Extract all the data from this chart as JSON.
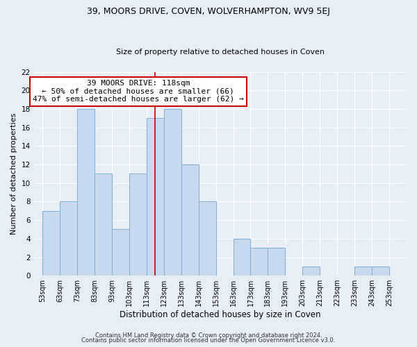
{
  "title_line1": "39, MOORS DRIVE, COVEN, WOLVERHAMPTON, WV9 5EJ",
  "title_line2": "Size of property relative to detached houses in Coven",
  "xlabel": "Distribution of detached houses by size in Coven",
  "ylabel": "Number of detached properties",
  "footer_line1": "Contains HM Land Registry data © Crown copyright and database right 2024.",
  "footer_line2": "Contains public sector information licensed under the Open Government Licence v3.0.",
  "annotation_line1": "39 MOORS DRIVE: 118sqm",
  "annotation_line2": "← 50% of detached houses are smaller (66)",
  "annotation_line3": "47% of semi-detached houses are larger (62) →",
  "bar_left_edges": [
    53,
    63,
    73,
    83,
    93,
    103,
    113,
    123,
    133,
    143,
    153,
    163,
    173,
    183,
    193,
    203,
    213,
    223,
    233,
    243
  ],
  "bar_heights": [
    7,
    8,
    18,
    11,
    5,
    11,
    17,
    18,
    12,
    8,
    0,
    4,
    3,
    3,
    0,
    1,
    0,
    0,
    1,
    1
  ],
  "bin_width": 10,
  "property_line_x": 118,
  "bar_facecolor": "#c6d9ee",
  "bar_edgecolor": "#7bafd4",
  "property_line_color": "#cc0000",
  "annotation_box_edgecolor": "#cc0000",
  "annotation_box_facecolor": "#ffffff",
  "ylim": [
    0,
    22
  ],
  "yticks": [
    0,
    2,
    4,
    6,
    8,
    10,
    12,
    14,
    16,
    18,
    20,
    22
  ],
  "xtick_labels": [
    "53sqm",
    "63sqm",
    "73sqm",
    "83sqm",
    "93sqm",
    "103sqm",
    "113sqm",
    "123sqm",
    "133sqm",
    "143sqm",
    "153sqm",
    "163sqm",
    "173sqm",
    "183sqm",
    "193sqm",
    "203sqm",
    "213sqm",
    "223sqm",
    "233sqm",
    "243sqm",
    "253sqm"
  ],
  "xtick_positions": [
    53,
    63,
    73,
    83,
    93,
    103,
    113,
    123,
    133,
    143,
    153,
    163,
    173,
    183,
    193,
    203,
    213,
    223,
    233,
    243,
    253
  ],
  "xlim": [
    48,
    263
  ],
  "background_color": "#e8eef5",
  "grid_color": "#ffffff",
  "title1_fontsize": 9,
  "title2_fontsize": 8,
  "xlabel_fontsize": 8.5,
  "ylabel_fontsize": 8,
  "tick_fontsize": 7,
  "footer_fontsize": 6,
  "annot_fontsize": 8
}
